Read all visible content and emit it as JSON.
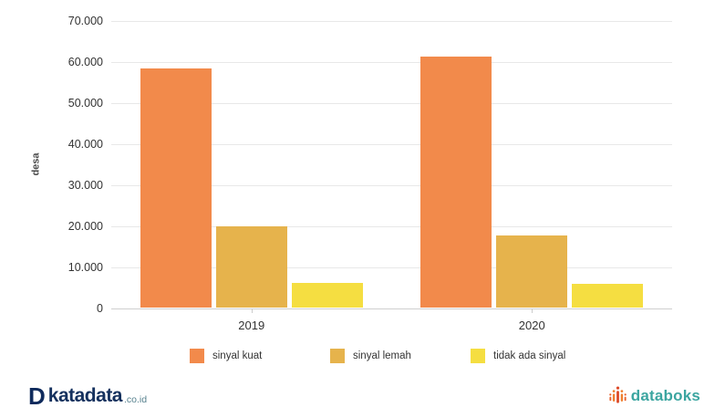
{
  "chart_data": {
    "type": "bar",
    "categories": [
      "2019",
      "2020"
    ],
    "series": [
      {
        "name": "sinyal kuat",
        "color": "#F28A4B",
        "values": [
          58300,
          61200
        ]
      },
      {
        "name": "sinyal lemah",
        "color": "#E6B34C",
        "values": [
          19800,
          17500
        ]
      },
      {
        "name": "tidak ada sinyal",
        "color": "#F5DE41",
        "values": [
          6000,
          5700
        ]
      }
    ],
    "title": "",
    "xlabel": "",
    "ylabel": "desa",
    "ylim": [
      0,
      70000
    ],
    "ytick_step": 10000,
    "ytick_labels": [
      "0",
      "10.000",
      "20.000",
      "30.000",
      "40.000",
      "50.000",
      "60.000",
      "70.000"
    ],
    "grid": true,
    "legend_position": "bottom"
  },
  "footer": {
    "katadata": {
      "icon_letter": "D",
      "name": "katadata",
      "suffix": ".co.id",
      "brand_color": "#15315e"
    },
    "databoks": {
      "name": "databoks",
      "brand_color": "#3ba5a0",
      "icon": "bar-cluster-icon"
    }
  }
}
